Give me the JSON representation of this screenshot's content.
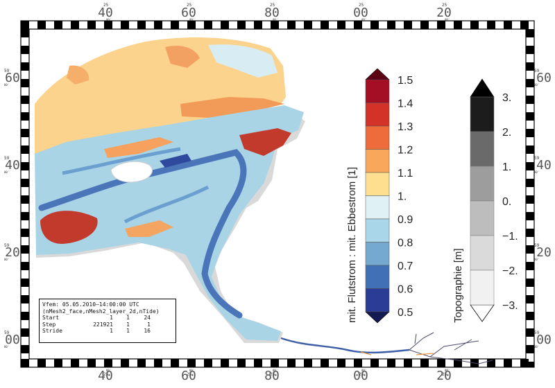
{
  "map": {
    "x_ticks": [
      "40",
      "60",
      "80",
      "00",
      "20"
    ],
    "x_tick_prefixes": [
      "25",
      "25",
      "25",
      "25",
      "25"
    ],
    "y_ticks": [
      "60",
      "40",
      "20",
      "00"
    ],
    "y_tick_prefixes": [
      "59",
      "59",
      "59",
      "59"
    ],
    "tick_suffix": "00'"
  },
  "flow_legend": {
    "title": "mit. Flutstrom : mit. Ebbestrom [1]",
    "labels": [
      "1.5",
      "1.4",
      "1.3",
      "1.2",
      "1.1",
      "1.",
      "0.9",
      "0.8",
      "0.7",
      "0.6",
      "0.5"
    ],
    "colors": [
      "#a50f26",
      "#d23227",
      "#ee6b3b",
      "#f9a75a",
      "#fddf8f",
      "#e0f1f6",
      "#a9d6e8",
      "#76a9d0",
      "#4270b6",
      "#2b3c96"
    ],
    "top_arrow_color": "#5c0214",
    "bottom_arrow_color": "#141a52"
  },
  "topo_legend": {
    "title": "Topographie [m]",
    "labels": [
      "3.",
      "2.",
      "1.",
      "0.",
      "−1.",
      "−2.",
      "−3."
    ],
    "colors": [
      "#1c1c1c",
      "#6a6a6a",
      "#9d9d9d",
      "#bdbdbd",
      "#dadada",
      "#f1f1f1"
    ],
    "top_arrow_color": "#000000",
    "bottom_arrow_color": "#ffffff"
  },
  "info": {
    "line1": "Vfem: 05.05.2010—14:00:00 UTC",
    "line2": "(nMesh2_face,nMesh2_layer_2d,nTide)",
    "rows": [
      {
        "label": "Start",
        "a": "1",
        "b": "1",
        "c": "24"
      },
      {
        "label": "Step",
        "a": "221921",
        "b": "1",
        "c": "1"
      },
      {
        "label": "Stride",
        "a": "1",
        "b": "1",
        "c": "16"
      }
    ]
  }
}
